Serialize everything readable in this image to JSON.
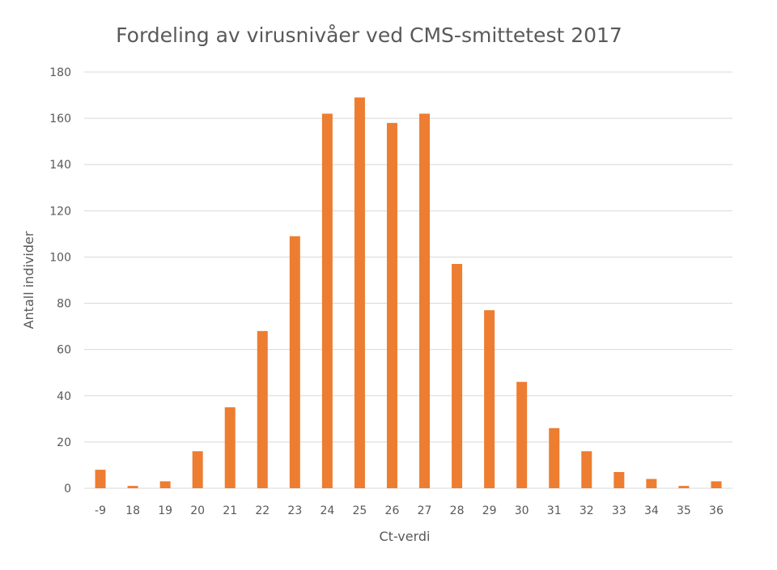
{
  "chart_data": {
    "type": "bar",
    "title": "Fordeling av virusnivåer ved CMS-smittetest 2017",
    "xlabel": "Ct-verdi",
    "ylabel": "Antall individer",
    "categories": [
      "-9",
      "18",
      "19",
      "20",
      "21",
      "22",
      "23",
      "24",
      "25",
      "26",
      "27",
      "28",
      "29",
      "30",
      "31",
      "32",
      "33",
      "34",
      "35",
      "36"
    ],
    "series": [
      {
        "values": [
          8,
          1,
          3,
          16,
          35,
          68,
          109,
          162,
          169,
          158,
          162,
          97,
          77,
          46,
          26,
          16,
          7,
          4,
          1,
          3
        ]
      }
    ],
    "ylim": [
      0,
      180
    ],
    "yticks": [
      "0",
      "20",
      "40",
      "60",
      "80",
      "100",
      "120",
      "140",
      "160",
      "180"
    ],
    "grid": "horizontal",
    "legend": "none",
    "bar_color": "#ed7d31"
  }
}
